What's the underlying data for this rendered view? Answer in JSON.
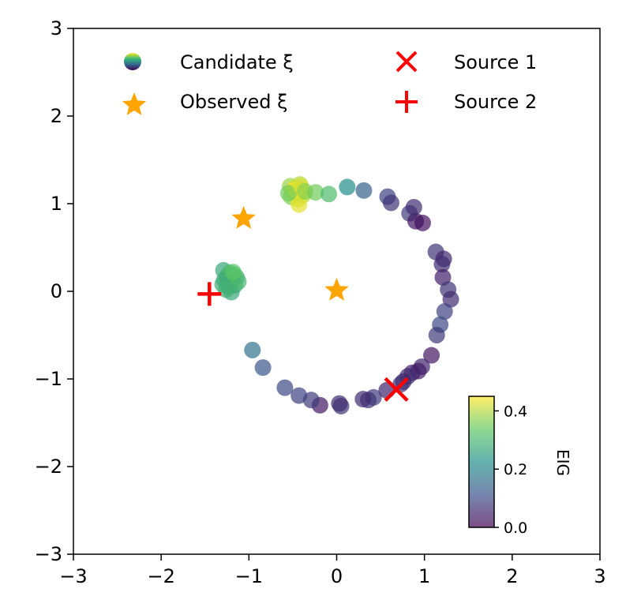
{
  "chart_data": {
    "type": "scatter",
    "xlim": [
      -3,
      3
    ],
    "ylim": [
      -3,
      3
    ],
    "xticks": [
      -3,
      -2,
      -1,
      0,
      1,
      2,
      3
    ],
    "yticks": [
      -3,
      -2,
      -1,
      0,
      1,
      2,
      3
    ],
    "xtick_labels": [
      "−3",
      "−2",
      "−1",
      "0",
      "1",
      "2",
      "3"
    ],
    "ytick_labels": [
      "−3",
      "−2",
      "−1",
      "0",
      "1",
      "2",
      "3"
    ],
    "grid": false,
    "legend": {
      "placement": "top",
      "entries": [
        {
          "label": "Candidate ξ",
          "marker": "circle-gradient"
        },
        {
          "label": "Observed ξ",
          "marker": "star"
        },
        {
          "label": "Source 1",
          "marker": "x"
        },
        {
          "label": "Source 2",
          "marker": "plus"
        }
      ]
    },
    "colorbar": {
      "label": "EIG",
      "range": [
        0,
        0.45
      ],
      "ticks": [
        0.0,
        0.2,
        0.4
      ],
      "tick_labels": [
        "0.0",
        "0.2",
        "0.4"
      ],
      "colormap": "viridis",
      "alpha": 0.7,
      "placement": "lower-right"
    },
    "colors": {
      "observed": "#FFA500",
      "source": "#FF0000"
    },
    "series": [
      {
        "name": "Candidate ξ",
        "points": [
          [
            -1.29,
            0.24,
            0.27
          ],
          [
            -1.22,
            0.21,
            0.3
          ],
          [
            -1.17,
            0.19,
            0.31
          ],
          [
            -1.25,
            0.17,
            0.29
          ],
          [
            -1.19,
            0.14,
            0.32
          ],
          [
            -1.28,
            0.13,
            0.28
          ],
          [
            -1.14,
            0.16,
            0.3
          ],
          [
            -1.24,
            0.09,
            0.28
          ],
          [
            -1.16,
            0.07,
            0.29
          ],
          [
            -1.23,
            0.05,
            0.31
          ],
          [
            -1.2,
            -0.01,
            0.27
          ],
          [
            -1.12,
            0.11,
            0.3
          ],
          [
            -1.3,
            0.08,
            0.28
          ],
          [
            -1.18,
            0.22,
            0.33
          ],
          [
            -1.26,
            0.02,
            0.29
          ],
          [
            -0.53,
            1.2,
            0.38
          ],
          [
            -0.48,
            1.18,
            0.42
          ],
          [
            -0.42,
            1.22,
            0.4
          ],
          [
            -0.5,
            1.14,
            0.43
          ],
          [
            -0.45,
            1.1,
            0.41
          ],
          [
            -0.4,
            1.15,
            0.39
          ],
          [
            -0.52,
            1.08,
            0.36
          ],
          [
            -0.44,
            1.05,
            0.42
          ],
          [
            -0.38,
            1.1,
            0.4
          ],
          [
            -0.43,
            0.99,
            0.43
          ],
          [
            -0.47,
            1.16,
            0.44
          ],
          [
            -0.55,
            1.12,
            0.35
          ],
          [
            -0.41,
            1.2,
            0.42
          ],
          [
            -0.36,
            1.14,
            0.37
          ],
          [
            -0.24,
            1.13,
            0.35
          ],
          [
            -0.09,
            1.11,
            0.31
          ],
          [
            0.12,
            1.19,
            0.22
          ],
          [
            0.31,
            1.15,
            0.14
          ],
          [
            0.58,
            1.08,
            0.09
          ],
          [
            0.62,
            1.01,
            0.07
          ],
          [
            0.83,
            0.89,
            0.08
          ],
          [
            0.9,
            0.8,
            0.03
          ],
          [
            0.98,
            0.78,
            0.02
          ],
          [
            0.88,
            0.96,
            0.06
          ],
          [
            1.13,
            0.45,
            0.07
          ],
          [
            1.22,
            0.37,
            0.05
          ],
          [
            1.2,
            0.31,
            0.06
          ],
          [
            1.21,
            0.16,
            0.04
          ],
          [
            1.27,
            0.02,
            0.07
          ],
          [
            1.3,
            -0.09,
            0.06
          ],
          [
            1.23,
            -0.23,
            0.09
          ],
          [
            1.18,
            -0.38,
            0.1
          ],
          [
            1.14,
            -0.5,
            0.08
          ],
          [
            1.08,
            -0.73,
            0.03
          ],
          [
            0.97,
            -0.86,
            0.05
          ],
          [
            0.93,
            -0.91,
            0.04
          ],
          [
            0.86,
            -0.93,
            0.04
          ],
          [
            0.81,
            -0.97,
            0.06
          ],
          [
            0.76,
            -1.03,
            0.05
          ],
          [
            0.73,
            -1.06,
            0.07
          ],
          [
            0.57,
            -1.13,
            0.05
          ],
          [
            0.42,
            -1.21,
            0.08
          ],
          [
            0.36,
            -1.24,
            0.07
          ],
          [
            0.3,
            -1.23,
            0.06
          ],
          [
            0.05,
            -1.31,
            0.07
          ],
          [
            0.03,
            -1.28,
            0.06
          ],
          [
            -0.19,
            -1.3,
            0.03
          ],
          [
            -0.29,
            -1.24,
            0.08
          ],
          [
            -0.43,
            -1.19,
            0.09
          ],
          [
            -0.59,
            -1.1,
            0.1
          ],
          [
            -0.84,
            -0.87,
            0.12
          ],
          [
            -0.96,
            -0.67,
            0.17
          ]
        ]
      },
      {
        "name": "Observed ξ",
        "points": [
          [
            -1.06,
            0.83
          ],
          [
            0.0,
            0.01
          ]
        ]
      },
      {
        "name": "Source 1",
        "points": [
          [
            0.68,
            -1.12
          ]
        ]
      },
      {
        "name": "Source 2",
        "points": [
          [
            -1.45,
            -0.03
          ]
        ]
      }
    ]
  }
}
